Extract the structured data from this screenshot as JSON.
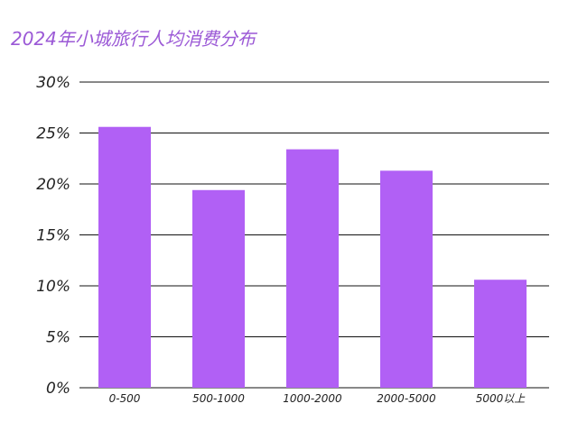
{
  "chart_data": {
    "type": "bar",
    "title": "2024年小城旅行人均消费分布",
    "xlabel": "",
    "ylabel": "",
    "categories": [
      "0-500",
      "500-1000",
      "1000-2000",
      "2000-5000",
      "5000以上"
    ],
    "values": [
      25.6,
      19.4,
      23.4,
      21.3,
      10.6
    ],
    "ylim": [
      0,
      30
    ],
    "yticks": [
      0,
      5,
      10,
      15,
      20,
      25,
      30
    ],
    "ytick_labels": [
      "0%",
      "5%",
      "10%",
      "15%",
      "20%",
      "25%",
      "30%"
    ],
    "grid": true,
    "colors": {
      "bar": "#b160f5",
      "title": "#9b59d6",
      "gridline": "#111111"
    }
  }
}
